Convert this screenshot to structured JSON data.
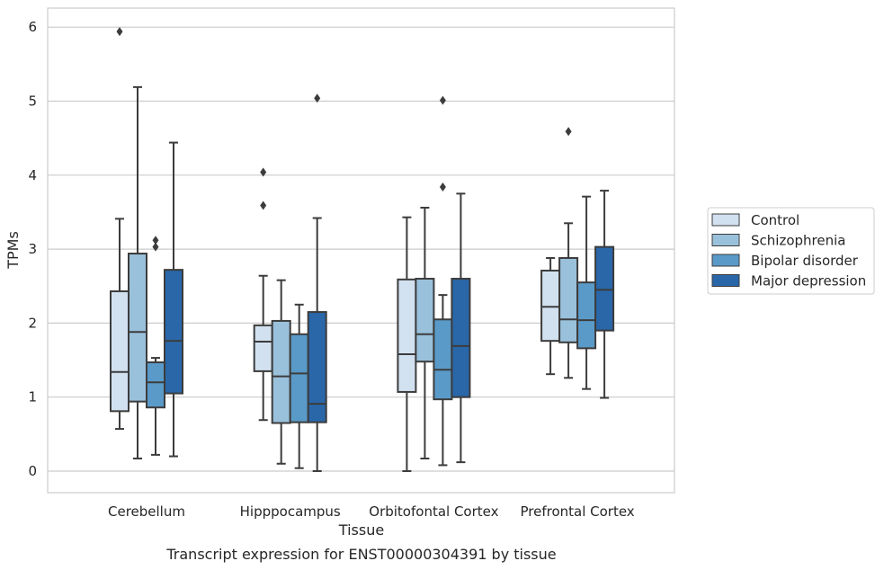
{
  "chart_data": {
    "type": "box",
    "xlabel": "Tissue",
    "ylabel": "TPMs",
    "caption": "Transcript expression for ENST00000304391 by tissue",
    "ylim": [
      -0.28,
      6.28
    ],
    "yticks": [
      "0",
      "1",
      "2",
      "3",
      "4",
      "5",
      "6"
    ],
    "grid": "horizontal",
    "legend_position": "right",
    "categories": [
      "Cerebellum",
      "Hipppocampus",
      "Orbitofontal Cortex",
      "Prefrontal Cortex"
    ],
    "series": [
      {
        "name": "Control",
        "color": "#d2e1f0",
        "boxes": [
          {
            "whisker_low": 0.57,
            "q1": 0.81,
            "median": 1.34,
            "q3": 2.43,
            "whisker_high": 3.41,
            "outliers": [
              5.94
            ]
          },
          {
            "whisker_low": 0.69,
            "q1": 1.35,
            "median": 1.75,
            "q3": 1.97,
            "whisker_high": 2.64,
            "outliers": [
              4.04,
              3.59
            ]
          },
          {
            "whisker_low": 0.0,
            "q1": 1.07,
            "median": 1.58,
            "q3": 2.59,
            "whisker_high": 3.43,
            "outliers": []
          },
          {
            "whisker_low": 1.31,
            "q1": 1.76,
            "median": 2.22,
            "q3": 2.71,
            "whisker_high": 2.88,
            "outliers": []
          }
        ]
      },
      {
        "name": "Schizophrenia",
        "color": "#9ac1db",
        "boxes": [
          {
            "whisker_low": 0.17,
            "q1": 0.94,
            "median": 1.88,
            "q3": 2.94,
            "whisker_high": 5.19,
            "outliers": []
          },
          {
            "whisker_low": 0.1,
            "q1": 0.65,
            "median": 1.28,
            "q3": 2.03,
            "whisker_high": 2.58,
            "outliers": []
          },
          {
            "whisker_low": 0.17,
            "q1": 1.48,
            "median": 1.85,
            "q3": 2.6,
            "whisker_high": 3.56,
            "outliers": []
          },
          {
            "whisker_low": 1.26,
            "q1": 1.74,
            "median": 2.05,
            "q3": 2.88,
            "whisker_high": 3.35,
            "outliers": [
              4.59
            ]
          }
        ]
      },
      {
        "name": "Bipolar disorder",
        "color": "#5a9ac8",
        "boxes": [
          {
            "whisker_low": 0.22,
            "q1": 0.86,
            "median": 1.2,
            "q3": 1.47,
            "whisker_high": 1.53,
            "outliers": [
              3.12,
              3.03
            ]
          },
          {
            "whisker_low": 0.04,
            "q1": 0.66,
            "median": 1.32,
            "q3": 1.85,
            "whisker_high": 2.25,
            "outliers": []
          },
          {
            "whisker_low": 0.08,
            "q1": 0.97,
            "median": 1.37,
            "q3": 2.05,
            "whisker_high": 2.38,
            "outliers": [
              5.01,
              3.84
            ]
          },
          {
            "whisker_low": 1.11,
            "q1": 1.66,
            "median": 2.04,
            "q3": 2.55,
            "whisker_high": 3.71,
            "outliers": []
          }
        ]
      },
      {
        "name": "Major depression",
        "color": "#2967a9",
        "boxes": [
          {
            "whisker_low": 0.2,
            "q1": 1.05,
            "median": 1.76,
            "q3": 2.72,
            "whisker_high": 4.44,
            "outliers": []
          },
          {
            "whisker_low": 0.0,
            "q1": 0.66,
            "median": 0.91,
            "q3": 2.15,
            "whisker_high": 3.42,
            "outliers": [
              5.04
            ]
          },
          {
            "whisker_low": 0.12,
            "q1": 1.0,
            "median": 1.69,
            "q3": 2.6,
            "whisker_high": 3.75,
            "outliers": []
          },
          {
            "whisker_low": 0.99,
            "q1": 1.9,
            "median": 2.45,
            "q3": 3.03,
            "whisker_high": 3.79,
            "outliers": []
          }
        ]
      }
    ],
    "colors": {
      "box_edge": "#3c3c3c",
      "grid": "#cccccc",
      "axes_edge": "#cccccc",
      "text": "#262626"
    }
  }
}
